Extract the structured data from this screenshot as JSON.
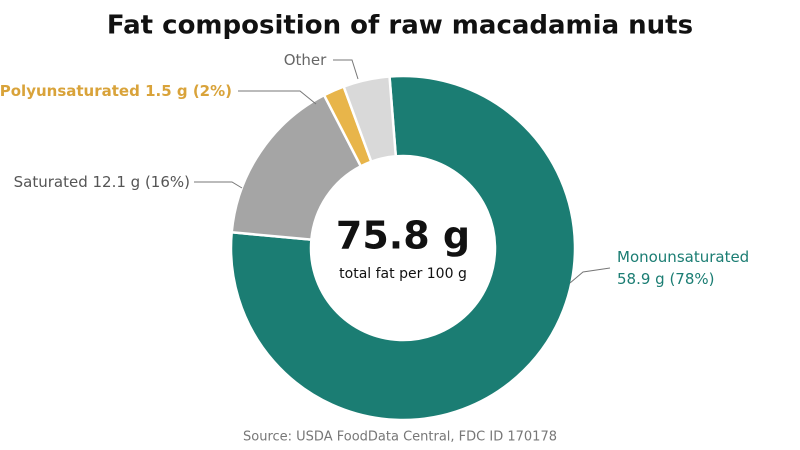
{
  "chart_data": {
    "type": "donut",
    "title": "Fat composition of raw macadamia nuts",
    "categories": [
      "Monounsaturated",
      "Saturated",
      "Polyunsaturated",
      "Other"
    ],
    "values": [
      58.9,
      12.1,
      1.5,
      3.3
    ],
    "value_labels": [
      "58.9 g (78%)",
      "12.1 g (16%)",
      "1.5 g (2%)",
      null
    ],
    "colors": [
      "#1b7d73",
      "#a5a5a5",
      "#e8b54a",
      "#d9d9d9"
    ],
    "label_colors": [
      "#1b7d73",
      "#555555",
      "#d9a33a",
      "#666666"
    ],
    "center_value": "75.8 g",
    "center_caption": "total fat per 100 g",
    "source": "Source: USDA FoodData Central, FDC ID 170178"
  }
}
